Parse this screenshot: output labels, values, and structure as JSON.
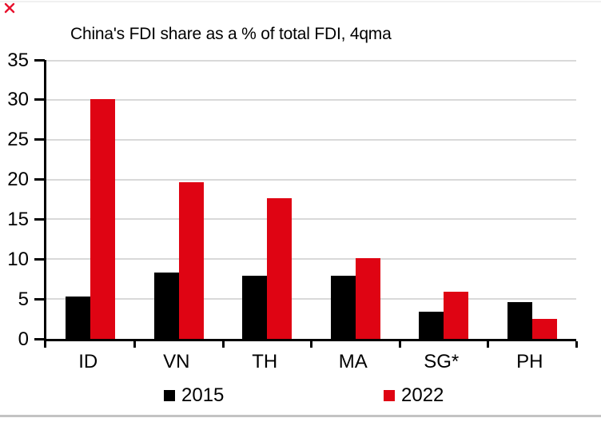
{
  "window": {
    "background": "#FFFFFF",
    "top_hairline_color": "#F0F0F0",
    "bottom_divider_color": "#C3C3C3"
  },
  "artifacts": {
    "broken_image_color": "#E8112D"
  },
  "chart_data": {
    "type": "bar",
    "title": "China's FDI share as a % of total FDI, 4qma",
    "categories": [
      "ID",
      "VN",
      "TH",
      "MA",
      "SG*",
      "PH"
    ],
    "series": [
      {
        "name": "2015",
        "color": "#000000",
        "values": [
          5.3,
          8.3,
          7.9,
          7.9,
          3.4,
          4.6
        ]
      },
      {
        "name": "2022",
        "color": "#DF0413",
        "values": [
          30.1,
          19.7,
          17.7,
          10.1,
          5.9,
          2.5
        ]
      }
    ],
    "xlabel": "",
    "ylabel": "",
    "ylim": [
      0,
      35
    ],
    "yticks": [
      0,
      5,
      10,
      15,
      20,
      25,
      30,
      35
    ],
    "grid": true,
    "gridline_color": "#D9D9D9",
    "axis_color": "#000000",
    "text_color": "#000000",
    "legend_position": "bottom",
    "legend_entries": [
      "2015",
      "2022"
    ]
  }
}
